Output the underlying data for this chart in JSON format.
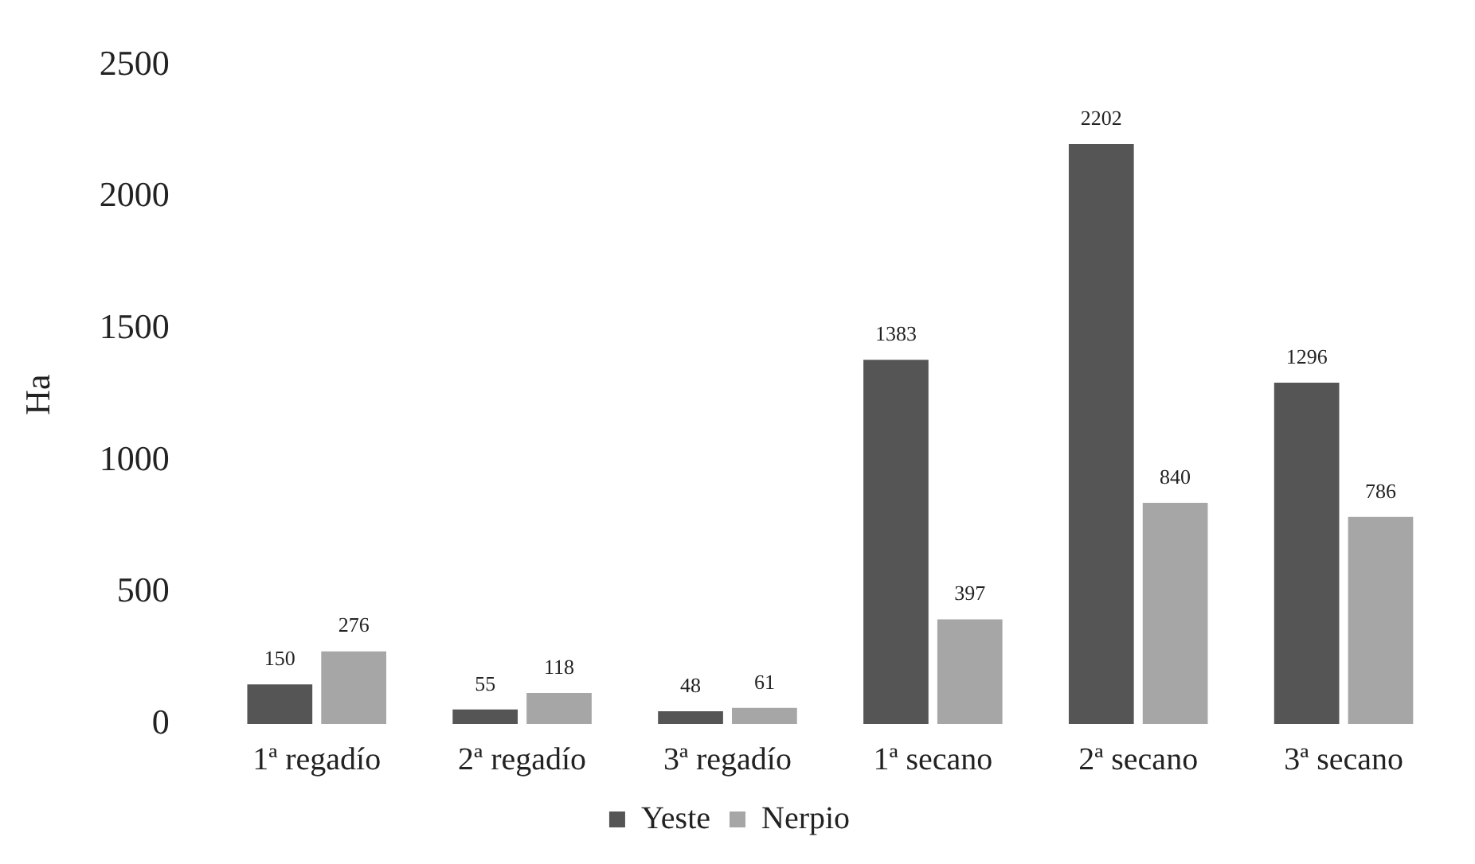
{
  "chart_data": {
    "type": "bar",
    "ylabel": "Ha",
    "categories": [
      "1ª regadío",
      "2ª regadío",
      "3ª regadío",
      "1ª secano",
      "2ª secano",
      "3ª secano"
    ],
    "series": [
      {
        "name": "Yeste",
        "color": "#555555",
        "values": [
          150,
          55,
          48,
          1383,
          2202,
          1296
        ]
      },
      {
        "name": "Nerpio",
        "color": "#a6a6a6",
        "values": [
          276,
          118,
          61,
          397,
          840,
          786
        ]
      }
    ],
    "ylim": [
      0,
      2500
    ],
    "yticks": [
      0,
      500,
      1000,
      1500,
      2000,
      2500
    ],
    "grid": false,
    "legend": "bottom",
    "data_labels": true
  }
}
